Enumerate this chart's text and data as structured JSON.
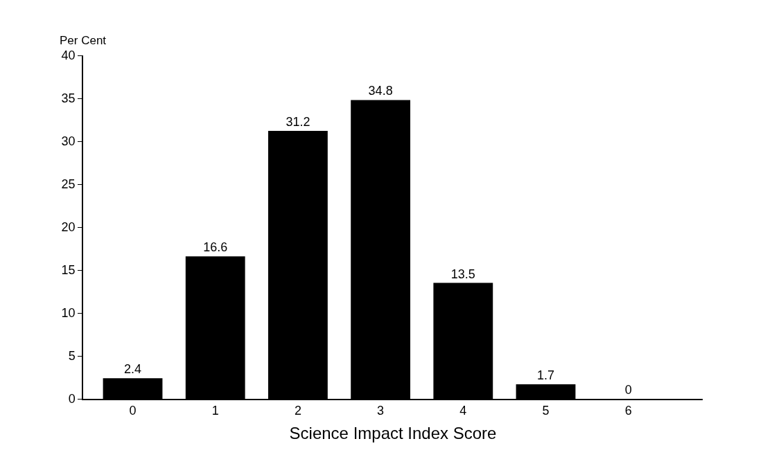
{
  "chart_data": {
    "type": "bar",
    "xlabel": "Science Impact Index Score",
    "ylabel": "Per Cent",
    "categories": [
      "0",
      "1",
      "2",
      "3",
      "4",
      "5",
      "6"
    ],
    "values": [
      2.4,
      16.6,
      31.2,
      34.8,
      13.5,
      1.7,
      0
    ],
    "color": "#000000",
    "ylim": [
      0,
      40
    ],
    "yticks": [
      0,
      5,
      10,
      15,
      20,
      25,
      30,
      35,
      40
    ],
    "data_labels": true
  }
}
